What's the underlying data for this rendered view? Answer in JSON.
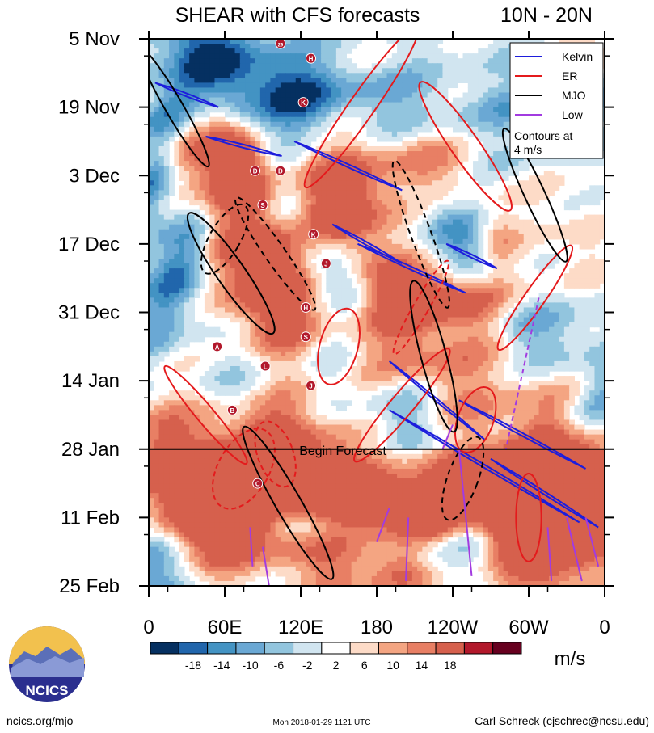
{
  "chart_data": {
    "type": "heatmap",
    "title": "SHEAR with CFS forecasts",
    "region": "10N - 20N",
    "x_tick_labels": [
      "0",
      "60E",
      "120E",
      "180",
      "120W",
      "60W",
      "0"
    ],
    "x_range_deg": [
      0,
      360
    ],
    "y_tick_labels": [
      "5 Nov",
      "19 Nov",
      "3 Dec",
      "17 Dec",
      "31 Dec",
      "14 Jan",
      "28 Jan",
      "11 Feb",
      "25 Feb"
    ],
    "y_range_days": [
      0,
      112
    ],
    "forecast_start_day": 84,
    "forecast_label": "Begin Forecast",
    "colorbar": {
      "tick_labels": [
        "-18",
        "-14",
        "-10",
        "-6",
        "-2",
        "2",
        "6",
        "10",
        "14",
        "18"
      ],
      "units": "m/s",
      "colors": [
        "#053061",
        "#2166ac",
        "#4393c3",
        "#6aa8d4",
        "#92c5de",
        "#d1e5f0",
        "#ffffff",
        "#fddbc7",
        "#f4a582",
        "#e87f64",
        "#d6604d",
        "#b2182b",
        "#67001f"
      ]
    },
    "legend": {
      "position": "top-right",
      "entries": [
        {
          "label": "Kelvin",
          "color": "#1d1ddc"
        },
        {
          "label": "ER",
          "color": "#e41a1c"
        },
        {
          "label": "MJO",
          "color": "#000000"
        },
        {
          "label": "Low",
          "color": "#a23be0"
        }
      ],
      "note_line1": "Contours at",
      "note_line2": "4 m/s"
    },
    "kelvin_waves": [
      {
        "lon": [
          5,
          55
        ],
        "day": [
          9,
          14
        ]
      },
      {
        "lon": [
          45,
          105
        ],
        "day": [
          20,
          24
        ]
      },
      {
        "lon": [
          115,
          200
        ],
        "day": [
          21,
          31
        ]
      },
      {
        "lon": [
          145,
          200
        ],
        "day": [
          38,
          46
        ]
      },
      {
        "lon": [
          165,
          250
        ],
        "day": [
          42,
          52
        ]
      },
      {
        "lon": [
          235,
          275
        ],
        "day": [
          42,
          47
        ]
      },
      {
        "lon": [
          190,
          265
        ],
        "day": [
          66,
          82
        ]
      },
      {
        "lon": [
          190,
          340
        ],
        "day": [
          76,
          99
        ]
      },
      {
        "lon": [
          245,
          345
        ],
        "day": [
          74,
          88
        ]
      },
      {
        "lon": [
          270,
          355
        ],
        "day": [
          86,
          100
        ]
      }
    ],
    "er_waves": [
      {
        "lon": 45,
        "day": 77,
        "rx": 7,
        "ry": 13,
        "rot": -40
      },
      {
        "lon": 200,
        "day": 75,
        "rx": 9,
        "ry": 15,
        "rot": 40
      },
      {
        "lon": 215,
        "day": 55,
        "rx": 6,
        "ry": 11,
        "rot": 30
      },
      {
        "lon": 305,
        "day": 53,
        "rx": 8,
        "ry": 13,
        "rot": 35
      },
      {
        "lon": 300,
        "day": 98,
        "rx": 10,
        "ry": 9,
        "rot": 0
      },
      {
        "lon": 100,
        "day": 85,
        "rx": 14,
        "ry": 7,
        "rot": -20
      },
      {
        "lon": 168,
        "day": 14,
        "rx": 10,
        "ry": 20,
        "rot": 35
      },
      {
        "lon": 250,
        "day": 22,
        "rx": 11,
        "ry": 16,
        "rot": -35
      },
      {
        "lon": 75,
        "day": 88,
        "rx": 20,
        "ry": 9,
        "rot": 30
      },
      {
        "lon": 258,
        "day": 78,
        "rx": 14,
        "ry": 7,
        "rot": 20
      },
      {
        "lon": 150,
        "day": 63,
        "rx": 15,
        "ry": 8,
        "rot": 15
      }
    ],
    "mjo_waves": [
      {
        "lon": 20,
        "day": 14,
        "rx": 7,
        "ry": 14,
        "rot": -30
      },
      {
        "lon": 60,
        "day": 41,
        "rx": 12,
        "ry": 8,
        "rot": 30
      },
      {
        "lon": 65,
        "day": 48,
        "rx": 11,
        "ry": 15,
        "rot": -35
      },
      {
        "lon": 100,
        "day": 44,
        "rx": 8,
        "ry": 14,
        "rot": -35
      },
      {
        "lon": 110,
        "day": 95,
        "rx": 10,
        "ry": 18,
        "rot": -30
      },
      {
        "lon": 215,
        "day": 40,
        "rx": 8,
        "ry": 16,
        "rot": -20
      },
      {
        "lon": 225,
        "day": 65,
        "rx": 10,
        "ry": 16,
        "rot": -15
      },
      {
        "lon": 248,
        "day": 90,
        "rx": 12,
        "ry": 9,
        "rot": 20
      },
      {
        "lon": 305,
        "day": 32,
        "rx": 8,
        "ry": 15,
        "rot": -25
      }
    ],
    "low_tracks": [
      {
        "lon": [
          190,
          180
        ],
        "day": [
          96,
          103
        ]
      },
      {
        "lon": [
          205,
          203
        ],
        "day": [
          98,
          111
        ]
      },
      {
        "lon": [
          240,
          232
        ],
        "day": [
          79,
          84
        ]
      },
      {
        "lon": [
          308,
          282
        ],
        "day": [
          53,
          84
        ]
      },
      {
        "lon": [
          245,
          255
        ],
        "day": [
          84,
          110
        ]
      },
      {
        "lon": [
          315,
          318
        ],
        "day": [
          100,
          111
        ]
      },
      {
        "lon": [
          330,
          342
        ],
        "day": [
          98,
          111
        ]
      },
      {
        "lon": [
          345,
          355
        ],
        "day": [
          98,
          108
        ]
      },
      {
        "lon": [
          80,
          82
        ],
        "day": [
          100,
          108
        ]
      },
      {
        "lon": [
          90,
          95
        ],
        "day": [
          104,
          112
        ]
      }
    ],
    "storm_markers": [
      "29",
      "H",
      "K",
      "D",
      "D",
      "S",
      "K",
      "J",
      "H",
      "S",
      "A",
      "L",
      "J",
      "B",
      "C"
    ],
    "annotations": [
      "Begin Forecast"
    ]
  },
  "footer": {
    "logo_text": "NCICS",
    "site": "ncics.org/mjo",
    "timestamp": "Mon 2018-01-29 1121 UTC",
    "author": "Carl Schreck (cjschrec@ncsu.edu)"
  }
}
